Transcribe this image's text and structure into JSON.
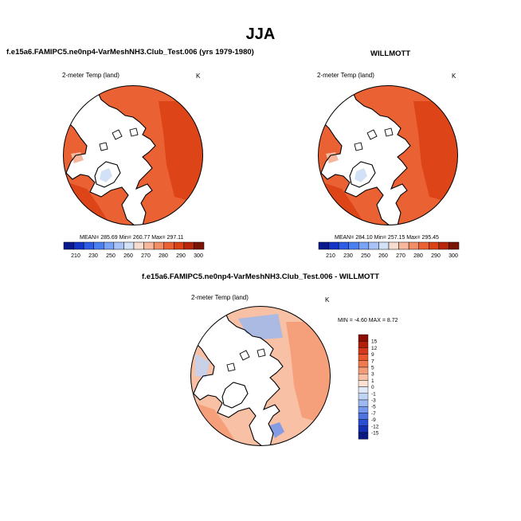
{
  "title": "JJA",
  "panels": [
    {
      "heading": "f.e15a6.FAMIPC5.ne0np4-VarMeshNH3.Club_Test.006 (yrs 1979-1980)",
      "var_label": "2-meter Temp (land)",
      "units": "K",
      "stats": "MEAN= 285.69  Min= 260.77  Max= 297.11"
    },
    {
      "heading": "WILLMOTT",
      "var_label": "2-meter Temp (land)",
      "units": "K",
      "stats": "MEAN= 284.10  Min= 257.15  Max= 295.45"
    },
    {
      "heading": "f.e15a6.FAMIPC5.ne0np4-VarMeshNH3.Club_Test.006 - WILLMOTT",
      "var_label": "2-meter Temp (land)",
      "units": "K",
      "stats": "MIN = -4.60 MAX =  8.72"
    }
  ],
  "chart_data": [
    {
      "type": "heatmap",
      "projection": "north-polar-stereographic",
      "title": "f.e15a6.FAMIPC5.ne0np4-VarMeshNH3.Club_Test.006 (yrs 1979-1980)",
      "variable": "2-meter Temp (land)",
      "units": "K",
      "mean": 285.69,
      "min": 260.77,
      "max": 297.11,
      "colorbar_ticks": [
        210,
        230,
        250,
        260,
        270,
        280,
        290,
        300
      ],
      "colorbar_colors": [
        "#0a1a8c",
        "#1434c8",
        "#2e5ce6",
        "#4a7ff0",
        "#7aa3f5",
        "#a9c3f7",
        "#d3e1f7",
        "#f7dcd0",
        "#f7b79c",
        "#f28d66",
        "#ea6234",
        "#db4216",
        "#b8270a",
        "#7a1405"
      ]
    },
    {
      "type": "heatmap",
      "projection": "north-polar-stereographic",
      "title": "WILLMOTT",
      "variable": "2-meter Temp (land)",
      "units": "K",
      "mean": 284.1,
      "min": 257.15,
      "max": 295.45,
      "colorbar_ticks": [
        210,
        230,
        250,
        260,
        270,
        280,
        290,
        300
      ],
      "colorbar_colors": [
        "#0a1a8c",
        "#1434c8",
        "#2e5ce6",
        "#4a7ff0",
        "#7aa3f5",
        "#a9c3f7",
        "#d3e1f7",
        "#f7dcd0",
        "#f7b79c",
        "#f28d66",
        "#ea6234",
        "#db4216",
        "#b8270a",
        "#7a1405"
      ]
    },
    {
      "type": "heatmap",
      "projection": "north-polar-stereographic",
      "title": "f.e15a6.FAMIPC5.ne0np4-VarMeshNH3.Club_Test.006 - WILLMOTT",
      "variable": "2-meter Temp (land)",
      "units": "K",
      "min": -4.6,
      "max": 8.72,
      "colorbar_ticks": [
        15,
        12,
        9,
        7,
        5,
        3,
        1,
        0,
        -1,
        -3,
        -5,
        -7,
        -9,
        -12,
        -15
      ],
      "colorbar_colors": [
        "#8a0e04",
        "#b21f0a",
        "#d3391a",
        "#e8572d",
        "#f07a4f",
        "#f49c77",
        "#f8c0a4",
        "#fbe2d3",
        "#dfe8f6",
        "#c0d4f3",
        "#9db9ef",
        "#7598ea",
        "#4e74e0",
        "#2a4fd2",
        "#1530b0",
        "#0a1a80"
      ]
    }
  ]
}
